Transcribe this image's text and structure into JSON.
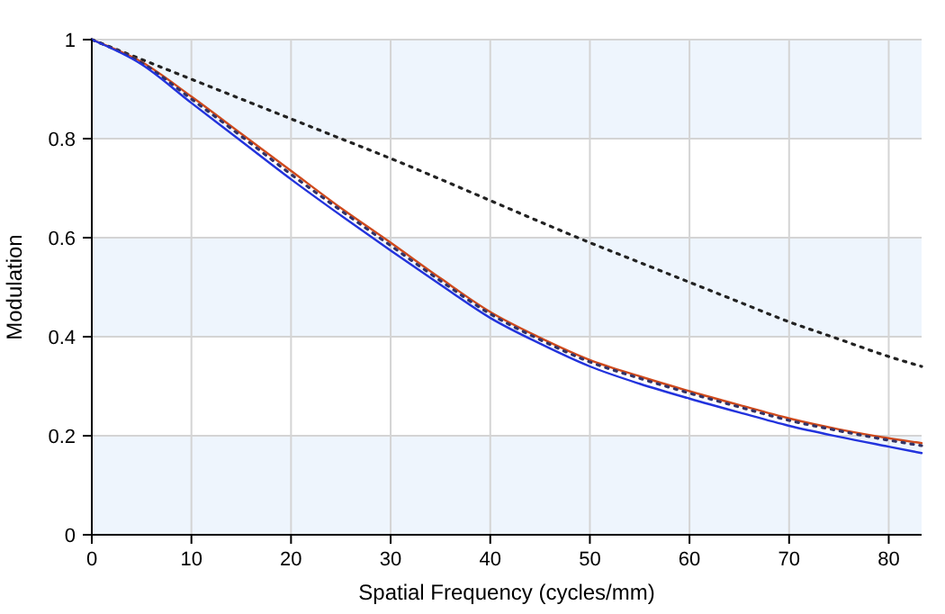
{
  "chart_data": {
    "type": "line",
    "xlabel": "Spatial Frequency (cycles/mm)",
    "ylabel": "Modulation",
    "xlim": [
      0,
      83.3
    ],
    "ylim": [
      0,
      1
    ],
    "xticks": [
      0,
      10,
      20,
      30,
      40,
      50,
      60,
      70,
      80
    ],
    "yticks": [
      0,
      0.2,
      0.4,
      0.6,
      0.8,
      1
    ],
    "grid": true,
    "bands": [
      {
        "axis": "y",
        "from": 0,
        "to": 0.2,
        "color": "#eef5fd"
      },
      {
        "axis": "y",
        "from": 0.4,
        "to": 0.6,
        "color": "#eef5fd"
      },
      {
        "axis": "y",
        "from": 0.8,
        "to": 1,
        "color": "#eef5fd"
      }
    ],
    "x": [
      0,
      5,
      10,
      15,
      20,
      25,
      30,
      35,
      40,
      45,
      50,
      55,
      60,
      65,
      70,
      75,
      80,
      83.3
    ],
    "series": [
      {
        "color": "#222222",
        "line_style": "dotted",
        "values": [
          1,
          0.96,
          0.92,
          0.88,
          0.84,
          0.8,
          0.76,
          0.718,
          0.675,
          0.632,
          0.59,
          0.55,
          0.51,
          0.47,
          0.43,
          0.395,
          0.36,
          0.34
        ]
      },
      {
        "color": "#d04a1c",
        "line_style": "solid",
        "values": [
          1,
          0.955,
          0.885,
          0.81,
          0.735,
          0.66,
          0.59,
          0.518,
          0.45,
          0.398,
          0.353,
          0.32,
          0.29,
          0.262,
          0.235,
          0.213,
          0.195,
          0.185
        ]
      },
      {
        "color": "#333366",
        "line_style": "dotted",
        "values": [
          1,
          0.953,
          0.88,
          0.805,
          0.728,
          0.655,
          0.584,
          0.513,
          0.446,
          0.394,
          0.349,
          0.316,
          0.286,
          0.258,
          0.231,
          0.21,
          0.191,
          0.18
        ]
      },
      {
        "color": "#2233dd",
        "line_style": "solid",
        "values": [
          1,
          0.95,
          0.872,
          0.795,
          0.718,
          0.645,
          0.574,
          0.505,
          0.438,
          0.386,
          0.34,
          0.305,
          0.275,
          0.247,
          0.22,
          0.198,
          0.178,
          0.165
        ]
      }
    ]
  }
}
